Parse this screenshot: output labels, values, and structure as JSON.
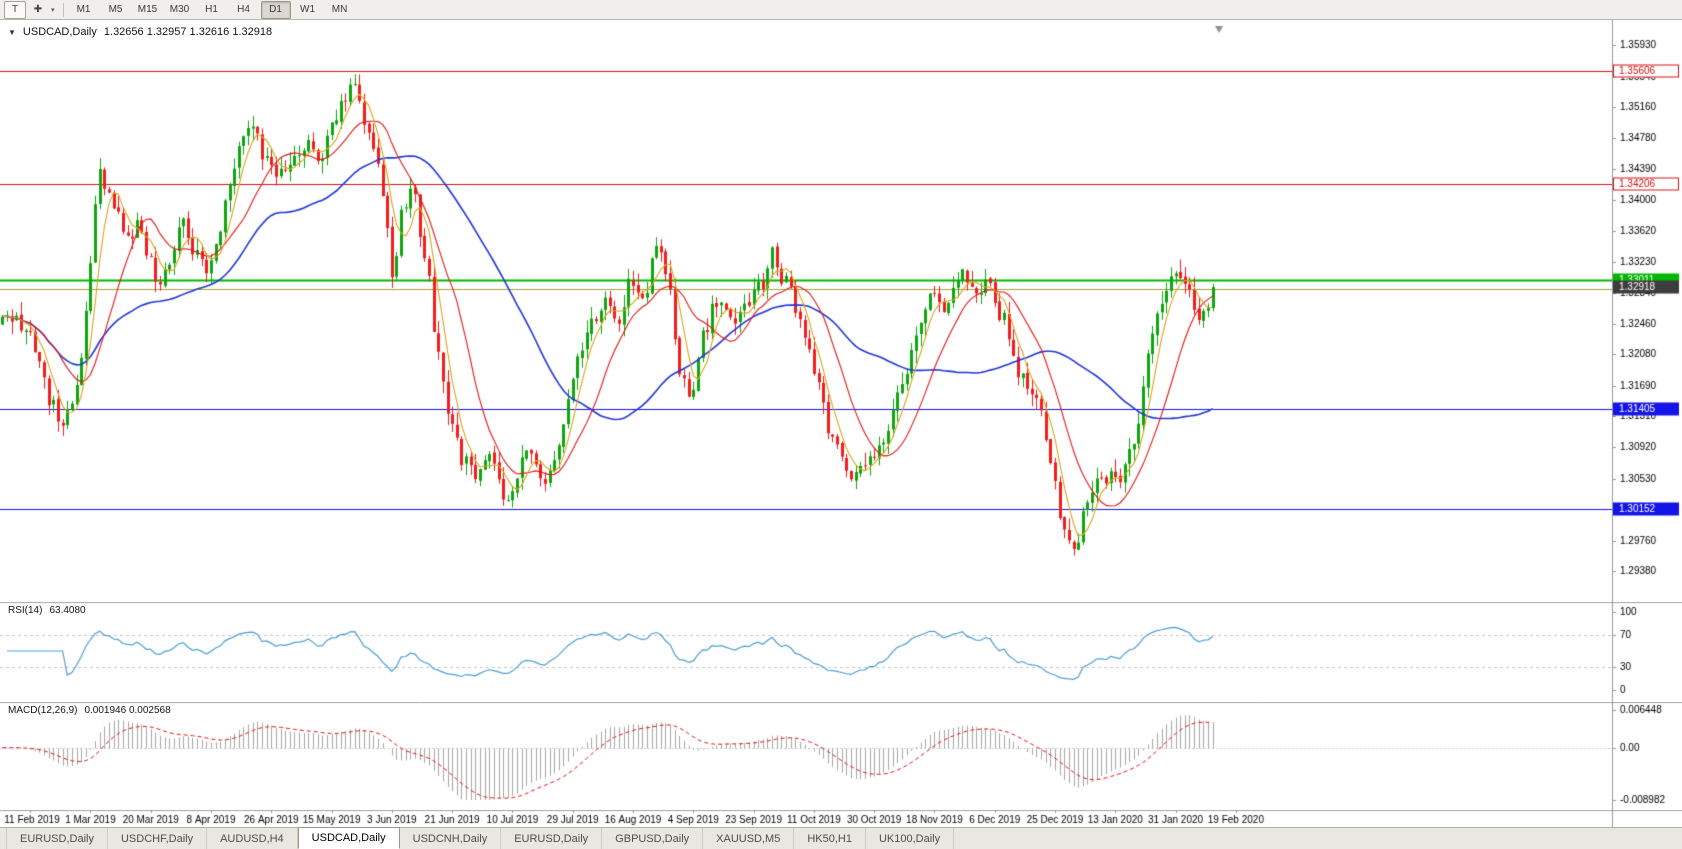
{
  "toolbar": {
    "template_icon": "T",
    "tool_icon": "✚",
    "tool_caret": "▾",
    "timeframes": [
      "M1",
      "M5",
      "M15",
      "M30",
      "H1",
      "H4",
      "D1",
      "W1",
      "MN"
    ],
    "active_timeframe": "D1"
  },
  "chart_header": {
    "arrow": "▼",
    "symbol": "USDCAD,Daily",
    "ohlc": "1.32656 1.32957 1.32616 1.32918"
  },
  "chart_data": {
    "type": "candlestick",
    "symbol": "USDCAD",
    "timeframe": "Daily",
    "current": {
      "open": 1.32656,
      "high": 1.32957,
      "low": 1.32616,
      "close": 1.32918
    },
    "num_candles": 262,
    "y_axis": {
      "min": 1.2912,
      "max": 1.3612,
      "labels": [
        "1.35930",
        "1.35540",
        "1.35160",
        "1.34780",
        "1.34390",
        "1.34000",
        "1.33620",
        "1.33230",
        "1.32840",
        "1.32460",
        "1.32080",
        "1.31690",
        "1.31310",
        "1.30920",
        "1.30530",
        "1.30150",
        "1.29760",
        "1.29380"
      ]
    },
    "x_axis": {
      "start": 6,
      "step": 13,
      "labels": [
        "11 Feb 2019",
        "1 Mar 2019",
        "20 Mar 2019",
        "8 Apr 2019",
        "26 Apr 2019",
        "15 May 2019",
        "3 Jun 2019",
        "21 Jun 2019",
        "10 Jul 2019",
        "29 Jul 2019",
        "16 Aug 2019",
        "4 Sep 2019",
        "23 Sep 2019",
        "11 Oct 2019",
        "30 Oct 2019",
        "18 Nov 2019",
        "6 Dec 2019",
        "25 Dec 2019",
        "13 Jan 2020",
        "31 Jan 2020",
        "19 Feb 2020"
      ]
    },
    "horizontal_lines": [
      {
        "price": 1.35606,
        "color": "#d41414",
        "width": 1,
        "tag": "1.35606",
        "tag_style": "outline"
      },
      {
        "price": 1.34206,
        "color": "#d41414",
        "width": 1,
        "tag": "1.34206",
        "tag_style": "outline"
      },
      {
        "price": 1.33011,
        "color": "#00b800",
        "width": 2,
        "tag": "1.33011",
        "tag_style": "fill"
      },
      {
        "price": 1.3289,
        "color": "#a89f3f",
        "width": 1,
        "tag": null,
        "tag_style": "none"
      },
      {
        "price": 1.31405,
        "color": "#1414e8",
        "width": 1,
        "tag": "1.31405",
        "tag_style": "fill"
      },
      {
        "price": 1.30152,
        "color": "#1414e8",
        "width": 1,
        "tag": "1.30152",
        "tag_style": "fill"
      }
    ],
    "price_tag": {
      "price": 1.32918,
      "label": "1.32918",
      "bg": "#3d3d3d"
    },
    "colors": {
      "up": "#0fa50f",
      "down": "#f21d1d",
      "axis": "#999999",
      "text": "#000000",
      "level_dash": "#c8c8c8",
      "shift_marker": "#909090"
    },
    "moving_averages": [
      {
        "period": 5,
        "color": "#DAA520",
        "width": 1.1
      },
      {
        "period": 13,
        "color": "#e41717",
        "width": 1.1
      },
      {
        "period": 40,
        "color": "#2136d4",
        "width": 1.6
      }
    ],
    "indicators": {
      "rsi": {
        "name": "RSI(14)",
        "value": "63.4080",
        "period": 14,
        "axis": [
          100,
          70,
          30,
          0
        ],
        "levels": [
          70,
          30
        ],
        "color": "#4e9fd1"
      },
      "macd": {
        "name": "MACD(12,26,9)",
        "value": "0.001946 0.002568",
        "fast": 12,
        "slow": 26,
        "signal": 9,
        "range": [
          -0.008982,
          0.006448
        ],
        "axis_labels": [
          "0.006448",
          "0.00",
          "-0.008982"
        ],
        "hist_color": "#a6a6a6",
        "signal_color": "#e41717"
      }
    },
    "anchors": [
      [
        0.0,
        1.3245
      ],
      [
        0.01,
        1.3252
      ],
      [
        0.02,
        1.3238
      ],
      [
        0.03,
        1.3205
      ],
      [
        0.04,
        1.315
      ],
      [
        0.048,
        1.3122
      ],
      [
        0.056,
        1.3145
      ],
      [
        0.064,
        1.319
      ],
      [
        0.072,
        1.331
      ],
      [
        0.08,
        1.3435
      ],
      [
        0.088,
        1.3415
      ],
      [
        0.095,
        1.338
      ],
      [
        0.103,
        1.3345
      ],
      [
        0.112,
        1.3365
      ],
      [
        0.12,
        1.3335
      ],
      [
        0.128,
        1.3295
      ],
      [
        0.138,
        1.333
      ],
      [
        0.148,
        1.3375
      ],
      [
        0.158,
        1.334
      ],
      [
        0.168,
        1.3315
      ],
      [
        0.178,
        1.3355
      ],
      [
        0.188,
        1.3415
      ],
      [
        0.196,
        1.3465
      ],
      [
        0.205,
        1.3498
      ],
      [
        0.214,
        1.3462
      ],
      [
        0.224,
        1.3432
      ],
      [
        0.234,
        1.3442
      ],
      [
        0.244,
        1.3445
      ],
      [
        0.254,
        1.347
      ],
      [
        0.263,
        1.3442
      ],
      [
        0.272,
        1.3488
      ],
      [
        0.281,
        1.352
      ],
      [
        0.29,
        1.355
      ],
      [
        0.297,
        1.3508
      ],
      [
        0.306,
        1.3462
      ],
      [
        0.315,
        1.3408
      ],
      [
        0.323,
        1.3302
      ],
      [
        0.331,
        1.3392
      ],
      [
        0.339,
        1.3425
      ],
      [
        0.349,
        1.3325
      ],
      [
        0.359,
        1.3218
      ],
      [
        0.369,
        1.3125
      ],
      [
        0.38,
        1.3078
      ],
      [
        0.391,
        1.3062
      ],
      [
        0.401,
        1.309
      ],
      [
        0.409,
        1.3052
      ],
      [
        0.417,
        1.3028
      ],
      [
        0.426,
        1.3062
      ],
      [
        0.436,
        1.3092
      ],
      [
        0.446,
        1.3048
      ],
      [
        0.456,
        1.3078
      ],
      [
        0.466,
        1.314
      ],
      [
        0.477,
        1.3202
      ],
      [
        0.488,
        1.3248
      ],
      [
        0.498,
        1.3282
      ],
      [
        0.509,
        1.3255
      ],
      [
        0.52,
        1.3298
      ],
      [
        0.531,
        1.3278
      ],
      [
        0.54,
        1.3342
      ],
      [
        0.55,
        1.3292
      ],
      [
        0.56,
        1.3182
      ],
      [
        0.569,
        1.3148
      ],
      [
        0.579,
        1.3232
      ],
      [
        0.591,
        1.3278
      ],
      [
        0.603,
        1.3246
      ],
      [
        0.615,
        1.3268
      ],
      [
        0.627,
        1.3298
      ],
      [
        0.636,
        1.3332
      ],
      [
        0.647,
        1.3298
      ],
      [
        0.659,
        1.3252
      ],
      [
        0.671,
        1.3185
      ],
      [
        0.683,
        1.3112
      ],
      [
        0.694,
        1.3072
      ],
      [
        0.705,
        1.3055
      ],
      [
        0.716,
        1.3072
      ],
      [
        0.728,
        1.3105
      ],
      [
        0.741,
        1.3162
      ],
      [
        0.755,
        1.3232
      ],
      [
        0.767,
        1.3278
      ],
      [
        0.779,
        1.3262
      ],
      [
        0.791,
        1.3308
      ],
      [
        0.803,
        1.3285
      ],
      [
        0.815,
        1.3298
      ],
      [
        0.827,
        1.3252
      ],
      [
        0.841,
        1.3178
      ],
      [
        0.855,
        1.3162
      ],
      [
        0.867,
        1.3068
      ],
      [
        0.877,
        1.2988
      ],
      [
        0.885,
        1.296
      ],
      [
        0.896,
        1.3016
      ],
      [
        0.908,
        1.306
      ],
      [
        0.921,
        1.3048
      ],
      [
        0.935,
        1.3105
      ],
      [
        0.949,
        1.3228
      ],
      [
        0.962,
        1.3298
      ],
      [
        0.971,
        1.3316
      ],
      [
        0.979,
        1.3288
      ],
      [
        0.988,
        1.3242
      ],
      [
        0.995,
        1.3262
      ],
      [
        1.0,
        1.32918
      ]
    ]
  },
  "tabs": {
    "active_index": 3,
    "items": [
      "EURUSD,Daily",
      "USDCHF,Daily",
      "AUDUSD,H4",
      "USDCAD,Daily",
      "USDCNH,Daily",
      "EURUSD,Daily",
      "GBPUSD,Daily",
      "XAUUSD,M5",
      "HK50,H1",
      "UK100,Daily"
    ]
  }
}
